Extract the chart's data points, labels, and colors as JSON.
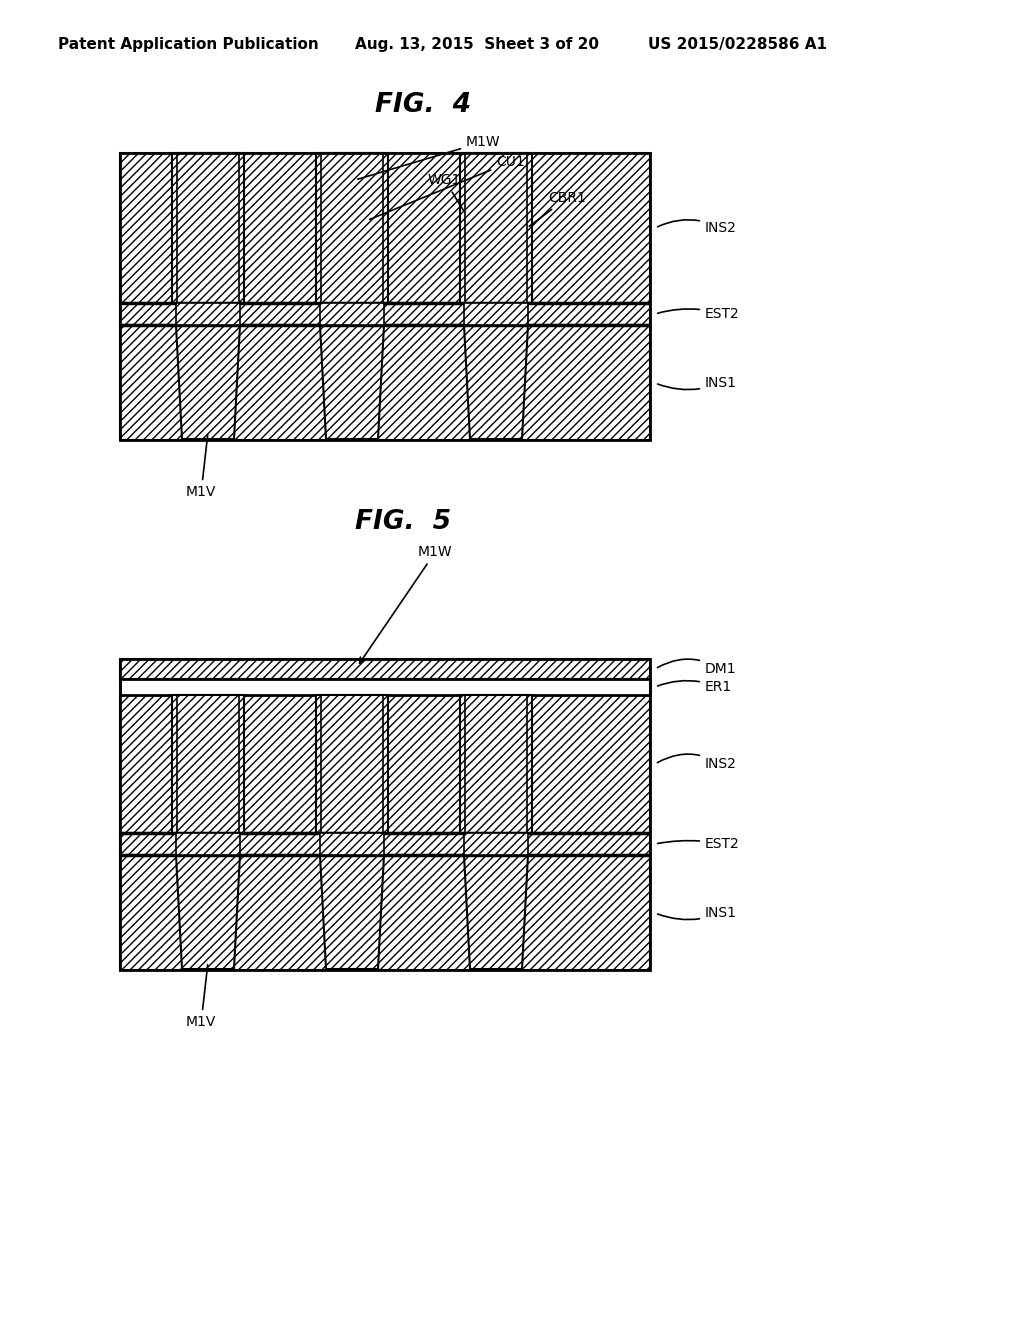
{
  "fig_width": 10.24,
  "fig_height": 13.2,
  "bg_color": "#ffffff",
  "header_left": "Patent Application Publication",
  "header_mid": "Aug. 13, 2015  Sheet 3 of 20",
  "header_right": "US 2015/0228586 A1",
  "fig4_title": "FIG.  4",
  "fig5_title": "FIG.  5",
  "line_color": "#000000"
}
